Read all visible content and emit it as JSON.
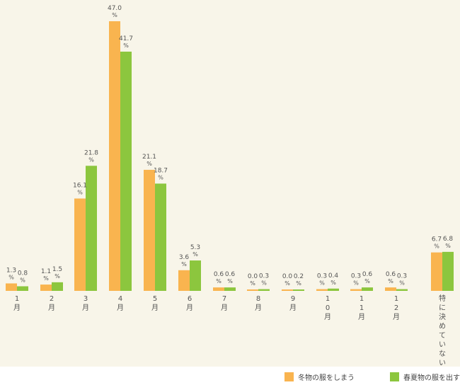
{
  "colors": {
    "winter": "#f9b44f",
    "spring": "#8cc63e",
    "text": "#555555",
    "background": "#f8f5e9"
  },
  "chart_data": {
    "type": "bar",
    "categories": [
      "1月",
      "2月",
      "3月",
      "4月",
      "5月",
      "6月",
      "7月",
      "8月",
      "9月",
      "10月",
      "11月",
      "12月",
      "特に決めていない"
    ],
    "series": [
      {
        "name": "冬物の服をしまう",
        "values": [
          1.3,
          1.1,
          16.1,
          47.0,
          21.1,
          3.6,
          0.6,
          0.0,
          0.0,
          0.3,
          0.3,
          0.6,
          6.7
        ]
      },
      {
        "name": "春夏物の服を出す",
        "values": [
          0.8,
          1.5,
          21.8,
          41.7,
          18.7,
          5.3,
          0.6,
          0.3,
          0.2,
          0.4,
          0.6,
          0.3,
          6.8
        ]
      }
    ],
    "value_suffix": "%",
    "ylim": [
      0,
      47
    ],
    "legend_position": "bottom-right",
    "grid": false
  },
  "legend": {
    "winter_label": "冬物の服をしまう",
    "spring_label": "春夏物の服を出す"
  }
}
